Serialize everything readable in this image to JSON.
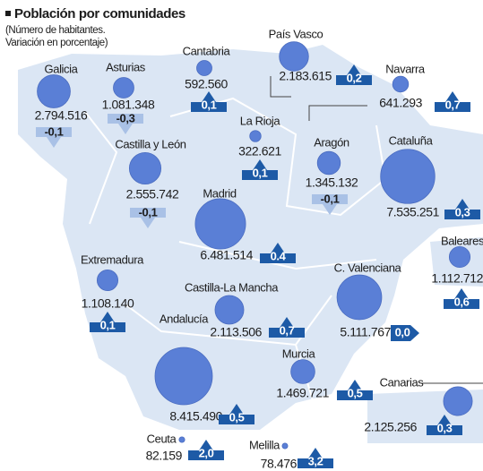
{
  "title": "Población por comunidades",
  "subtitle": [
    "(Número de habitantes.",
    "Variación en porcentaje)"
  ],
  "regions": [
    {
      "name": "Galicia",
      "population": 2794516,
      "population_label": "2.794.516",
      "change": -0.1,
      "change_label": "-0,1"
    },
    {
      "name": "Asturias",
      "population": 1081348,
      "population_label": "1.081.348",
      "change": -0.3,
      "change_label": "-0,3"
    },
    {
      "name": "Cantabria",
      "population": 592560,
      "population_label": "592.560",
      "change": 0.1,
      "change_label": "0,1"
    },
    {
      "name": "País Vasco",
      "population": 2183615,
      "population_label": "2.183.615",
      "change": 0.2,
      "change_label": "0,2"
    },
    {
      "name": "Navarra",
      "population": 641293,
      "population_label": "641.293",
      "change": 0.7,
      "change_label": "0,7"
    },
    {
      "name": "La Rioja",
      "population": 322621,
      "population_label": "322.621",
      "change": 0.1,
      "change_label": "0,1"
    },
    {
      "name": "Aragón",
      "population": 1345132,
      "population_label": "1.345.132",
      "change": -0.1,
      "change_label": "-0,1"
    },
    {
      "name": "Cataluña",
      "population": 7535251,
      "population_label": "7.535.251",
      "change": 0.3,
      "change_label": "0,3"
    },
    {
      "name": "Castilla y León",
      "population": 2555742,
      "population_label": "2.555.742",
      "change": -0.1,
      "change_label": "-0,1"
    },
    {
      "name": "Madrid",
      "population": 6481514,
      "population_label": "6.481.514",
      "change": 0.4,
      "change_label": "0.4"
    },
    {
      "name": "Baleares",
      "population": 1112712,
      "population_label": "1.112.712",
      "change": 0.6,
      "change_label": "0,6"
    },
    {
      "name": "Extremadura",
      "population": 1108140,
      "population_label": "1.108.140",
      "change": 0.1,
      "change_label": "0,1"
    },
    {
      "name": "C. Valenciana",
      "population": 5111767,
      "population_label": "5.111.767",
      "change": 0.0,
      "change_label": "0,0"
    },
    {
      "name": "Castilla-La Mancha",
      "population": 2113506,
      "population_label": "2.113.506",
      "change": 0.7,
      "change_label": "0,7"
    },
    {
      "name": "Andalucía",
      "population": 8415490,
      "population_label": "8.415.490",
      "change": 0.5,
      "change_label": "0,5"
    },
    {
      "name": "Murcia",
      "population": 1469721,
      "population_label": "1.469.721",
      "change": 0.5,
      "change_label": "0,5"
    },
    {
      "name": "Canarias",
      "population": 2125256,
      "population_label": "2.125.256",
      "change": 0.3,
      "change_label": "0,3"
    },
    {
      "name": "Ceuta",
      "population": 82159,
      "population_label": "82.159",
      "change": 2.0,
      "change_label": "2,0"
    },
    {
      "name": "Melilla",
      "population": 78476,
      "population_label": "78.476",
      "change": 3.2,
      "change_label": "3,2"
    }
  ]
}
